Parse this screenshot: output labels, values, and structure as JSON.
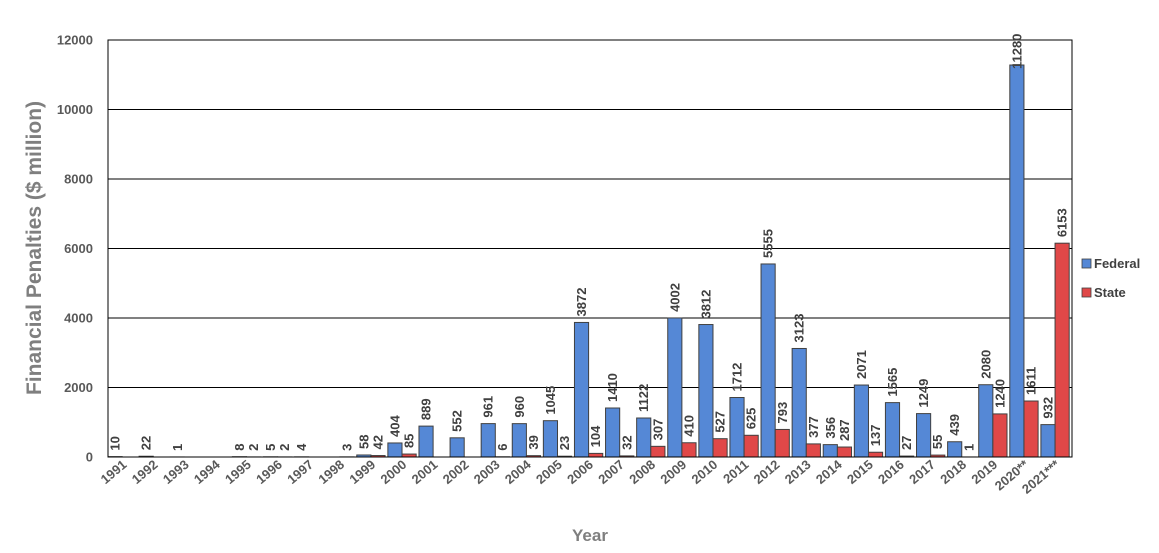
{
  "chart_data": {
    "type": "bar",
    "title": "",
    "xlabel": "Year",
    "ylabel": "Financial  Penalties ($ million)",
    "ylim": [
      0,
      12000
    ],
    "yticks": [
      0,
      2000,
      4000,
      6000,
      8000,
      10000,
      12000
    ],
    "grid": true,
    "legend_position": "right",
    "categories": [
      "1991",
      "1992",
      "1993",
      "1994",
      "1995",
      "1996",
      "1997",
      "1998",
      "1999",
      "2000",
      "2001",
      "2002",
      "2003",
      "2004",
      "2005",
      "2006",
      "2007",
      "2008",
      "2009",
      "2010",
      "2011",
      "2012",
      "2013",
      "2014",
      "2015",
      "2016",
      "2017",
      "2018",
      "2019",
      "2020**",
      "2021***"
    ],
    "series": [
      {
        "name": "Federal",
        "color": "#5588d6",
        "values": [
          10,
          22,
          1,
          null,
          8,
          5,
          4,
          null,
          58,
          404,
          889,
          552,
          961,
          960,
          1045,
          3872,
          1410,
          1122,
          4002,
          3812,
          1712,
          5555,
          3123,
          356,
          2071,
          1565,
          1249,
          439,
          2080,
          11280,
          932
        ]
      },
      {
        "name": "State",
        "color": "#e04848",
        "values": [
          null,
          null,
          null,
          null,
          2,
          2,
          null,
          3,
          42,
          85,
          null,
          null,
          6,
          39,
          23,
          104,
          32,
          307,
          410,
          527,
          625,
          793,
          377,
          287,
          137,
          27,
          55,
          1,
          1240,
          1611,
          6153
        ]
      }
    ]
  }
}
